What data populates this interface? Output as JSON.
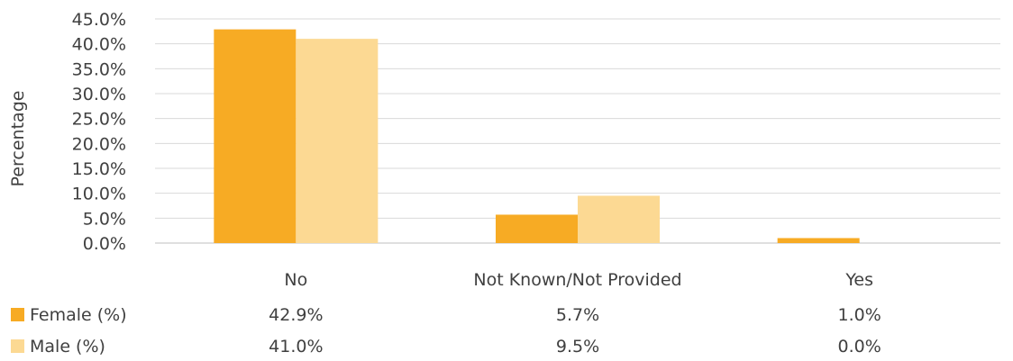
{
  "chart_data": {
    "type": "bar",
    "ylabel": "Percentage",
    "xlabel": "",
    "ylim": [
      0,
      45
    ],
    "yticks": [
      "0.0%",
      "5.0%",
      "10.0%",
      "15.0%",
      "20.0%",
      "25.0%",
      "30.0%",
      "35.0%",
      "40.0%",
      "45.0%"
    ],
    "grid": true,
    "categories": [
      "No",
      "Not Known/Not Provided",
      "Yes"
    ],
    "series": [
      {
        "name": "Female (%)",
        "color": "#F7AB24",
        "values": [
          42.9,
          5.7,
          1.0
        ],
        "labels": [
          "42.9%",
          "5.7%",
          "1.0%"
        ]
      },
      {
        "name": "Male (%)",
        "color": "#FCD993",
        "values": [
          41.0,
          9.5,
          0.0
        ],
        "labels": [
          "41.0%",
          "9.5%",
          "0.0%"
        ]
      }
    ],
    "legend": "data-table-left"
  }
}
